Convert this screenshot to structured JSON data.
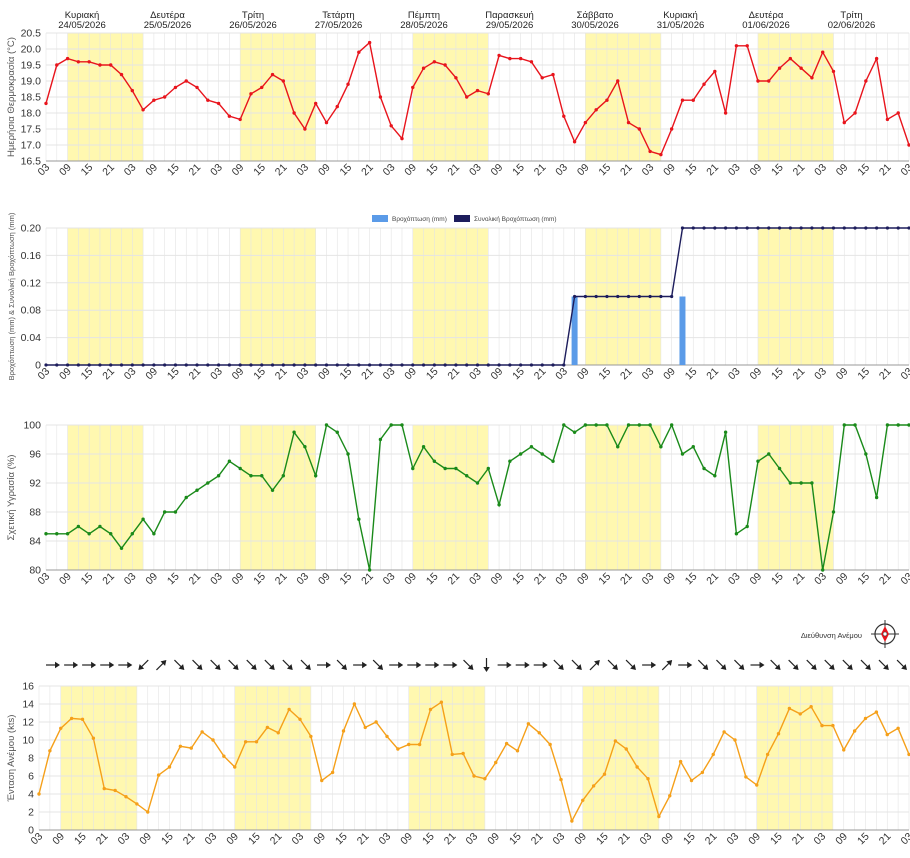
{
  "days": [
    {
      "name": "Κυριακή",
      "date": "24/05/2026"
    },
    {
      "name": "Δευτέρα",
      "date": "25/05/2026"
    },
    {
      "name": "Τρίτη",
      "date": "26/05/2026"
    },
    {
      "name": "Τετάρτη",
      "date": "27/05/2026"
    },
    {
      "name": "Πέμπτη",
      "date": "28/05/2026"
    },
    {
      "name": "Παρασκευή",
      "date": "29/05/2026"
    },
    {
      "name": "Σάββατο",
      "date": "30/05/2026"
    },
    {
      "name": "Κυριακή",
      "date": "31/05/2026"
    },
    {
      "name": "Δευτέρα",
      "date": "01/06/2026"
    },
    {
      "name": "Τρίτη",
      "date": "02/06/2026"
    }
  ],
  "x_ticks": [
    "03",
    "09",
    "15",
    "21",
    "03",
    "09",
    "15",
    "21",
    "03",
    "09",
    "15",
    "21",
    "03",
    "09",
    "15",
    "21",
    "03",
    "09",
    "15",
    "21",
    "03",
    "09",
    "15",
    "21",
    "03",
    "09",
    "15",
    "21",
    "03",
    "09",
    "15",
    "21",
    "03",
    "09",
    "15",
    "21",
    "03",
    "09",
    "15",
    "21",
    "03"
  ],
  "colors": {
    "temp": "#e8141c",
    "rain_bar": "#5b9be8",
    "rain_total": "#1d1d5c",
    "humidity": "#1a8a1a",
    "wind": "#f5a01a",
    "shade": "#fff8b0",
    "grid": "#e4e4e4",
    "axis_text": "#333333"
  },
  "chart_data": [
    {
      "type": "line",
      "ylabel": "Ημερήσια Θερμοκρασία (°C)",
      "ylim": [
        16.5,
        20.5
      ],
      "yticks": [
        "20.5",
        "20.0",
        "19.5",
        "19.0",
        "18.5",
        "18.0",
        "17.5",
        "17.0",
        "16.5"
      ],
      "series": [
        {
          "values": [
            18.3,
            19.5,
            19.7,
            19.6,
            19.6,
            19.5,
            19.5,
            19.2,
            18.7,
            18.1,
            18.4,
            18.5,
            18.8,
            19.0,
            18.8,
            18.4,
            18.3,
            17.9,
            17.8,
            18.6,
            18.8,
            19.2,
            19.0,
            18.0,
            17.5,
            18.3,
            17.7,
            18.2,
            18.9,
            19.9,
            20.2,
            18.5,
            17.6,
            17.2,
            18.8,
            19.4,
            19.6,
            19.5,
            19.1,
            18.5,
            18.7,
            18.6,
            19.8,
            19.7,
            19.7,
            19.6,
            19.1,
            19.2,
            17.9,
            17.1,
            17.7,
            18.1,
            18.4,
            19.0,
            17.7,
            17.5,
            16.8,
            16.7,
            17.5,
            18.4,
            18.4,
            18.9,
            19.3,
            18.0,
            20.1,
            20.1,
            19.0,
            19.0,
            19.4,
            19.7,
            19.4,
            19.1,
            19.9,
            19.3,
            17.7,
            18.0,
            19.0,
            19.7,
            17.8,
            18.0,
            17.0
          ]
        }
      ]
    },
    {
      "type": "bar+line",
      "ylabel": "Βροχόπτωση (mm) & Συνολική Βροχόπτωση (mm)",
      "ylim": [
        0,
        0.2
      ],
      "yticks": [
        "0.20",
        "0.16",
        "0.12",
        "0.08",
        "0.04",
        "0"
      ],
      "legend": [
        "Βροχόπτωση (mm)",
        "Συνολική Βροχόπτωση (mm)"
      ],
      "bars": [
        {
          "index": 49,
          "value": 0.1
        },
        {
          "index": 59,
          "value": 0.1
        }
      ],
      "total_steps": [
        {
          "from": 0,
          "to": 48,
          "value": 0
        },
        {
          "from": 49,
          "to": 58,
          "value": 0.1
        },
        {
          "from": 59,
          "to": 80,
          "value": 0.2
        }
      ]
    },
    {
      "type": "line",
      "ylabel": "Σχετική Υγρασία (%)",
      "ylim": [
        80,
        100
      ],
      "yticks": [
        "100",
        "96",
        "92",
        "88",
        "84",
        "80"
      ],
      "series": [
        {
          "values": [
            85,
            85,
            85,
            86,
            85,
            86,
            85,
            83,
            85,
            87,
            85,
            88,
            88,
            90,
            91,
            92,
            93,
            95,
            94,
            93,
            93,
            91,
            93,
            99,
            97,
            93,
            100,
            99,
            96,
            87,
            80,
            98,
            100,
            100,
            94,
            97,
            95,
            94,
            94,
            93,
            92,
            94,
            89,
            95,
            96,
            97,
            96,
            95,
            100,
            99,
            100,
            100,
            100,
            97,
            100,
            100,
            100,
            97,
            100,
            96,
            97,
            94,
            93,
            99,
            85,
            86,
            95,
            96,
            94,
            92,
            92,
            92,
            80,
            88,
            100,
            100,
            96,
            90,
            100,
            100,
            100
          ]
        }
      ]
    },
    {
      "type": "line",
      "ylabel": "Ένταση Ανέμου (kts)",
      "ylim": [
        0,
        16
      ],
      "yticks": [
        "16",
        "14",
        "12",
        "10",
        "8",
        "6",
        "4",
        "2",
        "0"
      ],
      "wind_label": "Διεύθυνση Ανέμου",
      "wind_directions": [
        90,
        90,
        90,
        90,
        90,
        225,
        45,
        135,
        135,
        135,
        135,
        135,
        135,
        135,
        135,
        90,
        135,
        90,
        135,
        90,
        90,
        90,
        90,
        135,
        180,
        90,
        90,
        90,
        135,
        135,
        45,
        135,
        135,
        90,
        45,
        90,
        135,
        135,
        135,
        90,
        135,
        135,
        135,
        135,
        135,
        135,
        135,
        135
      ],
      "series": [
        {
          "values": [
            4.0,
            8.8,
            11.3,
            12.4,
            12.3,
            10.2,
            4.6,
            4.4,
            3.7,
            2.9,
            2.0,
            6.1,
            7.0,
            9.3,
            9.1,
            10.9,
            10.0,
            8.2,
            7.0,
            9.8,
            9.8,
            11.4,
            10.8,
            13.4,
            12.3,
            10.4,
            5.5,
            6.4,
            11.0,
            14.0,
            11.4,
            12.0,
            10.4,
            9.0,
            9.5,
            9.5,
            13.4,
            14.2,
            8.4,
            8.5,
            6.0,
            5.7,
            7.5,
            9.6,
            8.8,
            11.8,
            10.8,
            9.5,
            5.6,
            1.0,
            3.3,
            4.9,
            6.2,
            9.9,
            9.0,
            7.0,
            5.7,
            1.5,
            3.8,
            7.6,
            5.5,
            6.4,
            8.4,
            10.9,
            10.0,
            5.9,
            5.0,
            8.4,
            10.7,
            13.5,
            12.9,
            13.7,
            11.6,
            11.6,
            8.9,
            11.0,
            12.4,
            13.1,
            10.6,
            11.3,
            8.4
          ]
        }
      ]
    }
  ]
}
